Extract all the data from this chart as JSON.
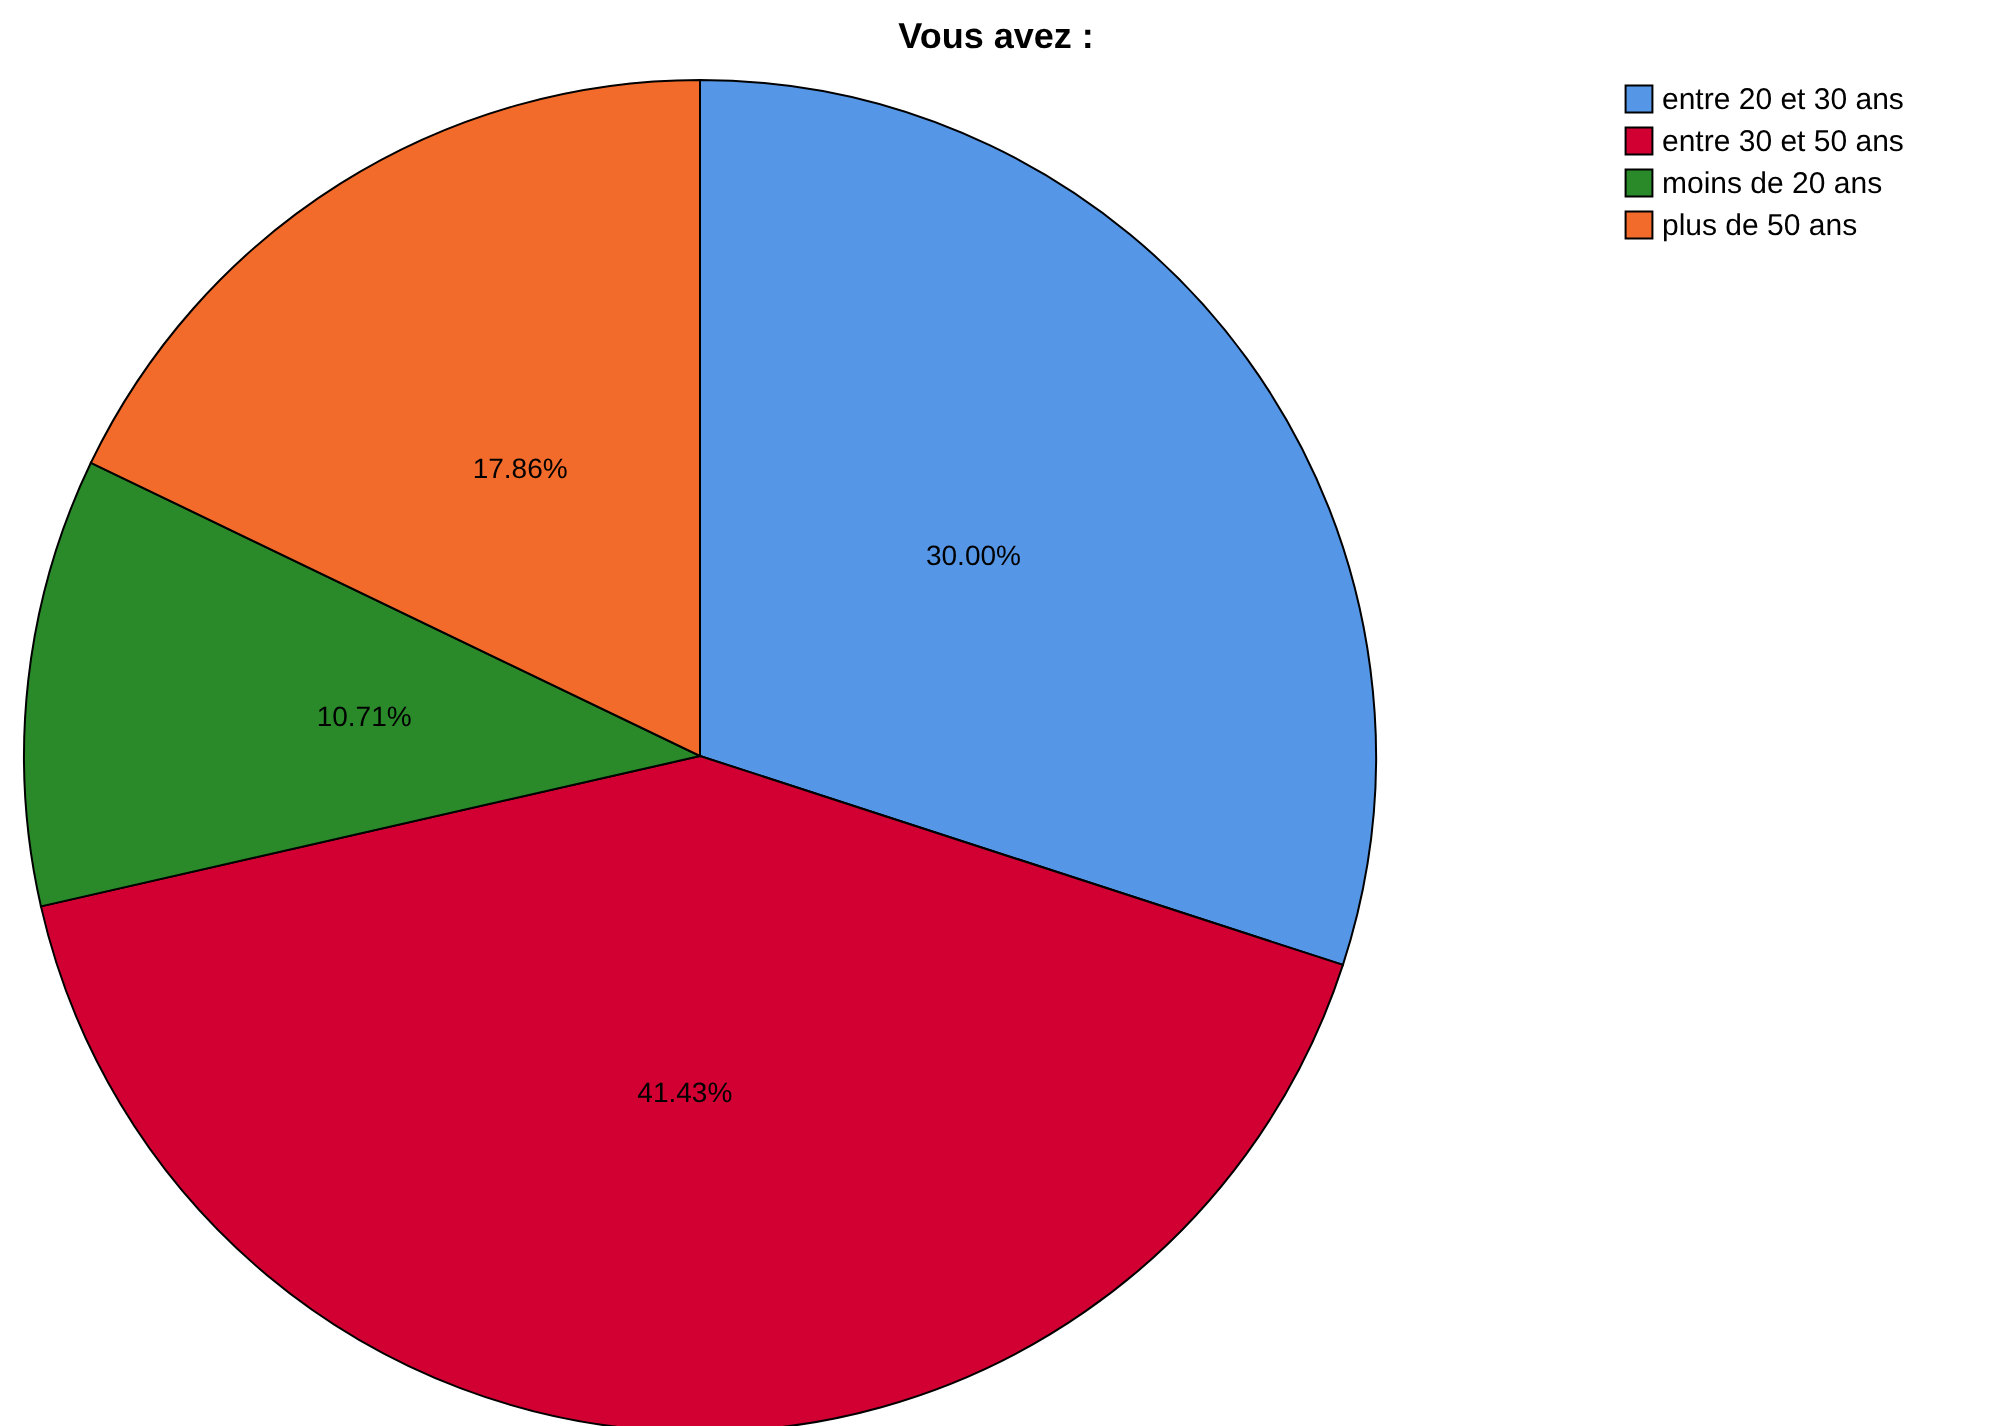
{
  "chart_data": {
    "type": "pie",
    "title": "Vous avez :",
    "categories": [
      "entre 20 et 30 ans",
      "entre 30 et 50 ans",
      "moins de 20 ans",
      "plus de 50 ans"
    ],
    "values": [
      30.0,
      41.43,
      10.71,
      17.86
    ],
    "colors": [
      "#5596e6",
      "#d20032",
      "#2a8a2a",
      "#f26b2a"
    ],
    "value_labels": [
      "30.00%",
      "41.43%",
      "10.71%",
      "17.86%"
    ],
    "legend": "top right"
  }
}
